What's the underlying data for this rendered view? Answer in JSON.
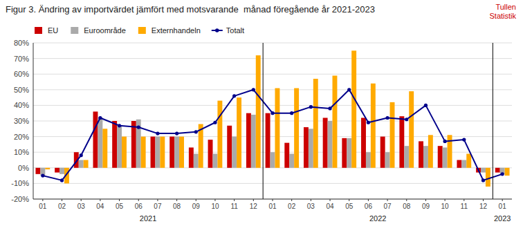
{
  "chart_data": {
    "type": "bar",
    "title": "Figur 3. Ändring av importvärdet jämfört med motsvarande  månad föregående år 2021-2023",
    "annotations": [
      {
        "text": "Tullen\nStatistik",
        "color": "#cc0000"
      }
    ],
    "group_labels": [
      "2021",
      "2022",
      "2023"
    ],
    "categories": [
      "01",
      "02",
      "03",
      "04",
      "05",
      "06",
      "07",
      "08",
      "09",
      "10",
      "11",
      "12",
      "01",
      "02",
      "03",
      "04",
      "05",
      "06",
      "07",
      "08",
      "09",
      "10",
      "11",
      "12",
      "01"
    ],
    "series": [
      {
        "name": "EU",
        "color": "#cc0000",
        "values": [
          -4,
          -3,
          10,
          36,
          30,
          30,
          20,
          20,
          13,
          18,
          27,
          35,
          35,
          16,
          26,
          32,
          19,
          32,
          20,
          33,
          17,
          14,
          5,
          -3,
          -3
        ]
      },
      {
        "name": "Euroområde",
        "color": "#aaaaaa",
        "values": [
          -5,
          -4,
          5,
          32,
          27,
          31,
          20,
          20,
          9,
          9,
          20,
          34,
          10,
          9,
          25,
          30,
          19,
          10,
          10,
          14,
          14,
          13,
          5,
          -3,
          -4
        ]
      },
      {
        "name": "Externhandeln",
        "color": "#ffaa00",
        "values": [
          -1,
          -10,
          5,
          25,
          20,
          20,
          20,
          20,
          28,
          43,
          45,
          72,
          51,
          51,
          57,
          59,
          75,
          54,
          42,
          49,
          21,
          21,
          9,
          -12,
          -5
        ]
      },
      {
        "name": "Totalt",
        "color": "#00008b",
        "type": "line",
        "marker": "circle",
        "values": [
          -5,
          -8,
          8,
          32,
          27,
          26,
          22,
          22,
          23,
          29,
          46,
          50,
          35,
          35,
          39,
          38,
          50,
          29,
          32,
          31,
          40,
          17,
          18,
          -8,
          -4
        ]
      }
    ],
    "ylim": [
      -20,
      80
    ],
    "yticks": [
      {
        "value": -20,
        "label": "-20%"
      },
      {
        "value": -10,
        "label": "-10%"
      },
      {
        "value": 0,
        "label": "0%"
      },
      {
        "value": 10,
        "label": "10%"
      },
      {
        "value": 20,
        "label": "20%"
      },
      {
        "value": 30,
        "label": "30%"
      },
      {
        "value": 40,
        "label": "40%"
      },
      {
        "value": 50,
        "label": "50%"
      },
      {
        "value": 60,
        "label": "60%"
      },
      {
        "value": 70,
        "label": "70%"
      },
      {
        "value": 80,
        "label": "80%"
      }
    ],
    "grid": true,
    "legend": "top-left"
  }
}
